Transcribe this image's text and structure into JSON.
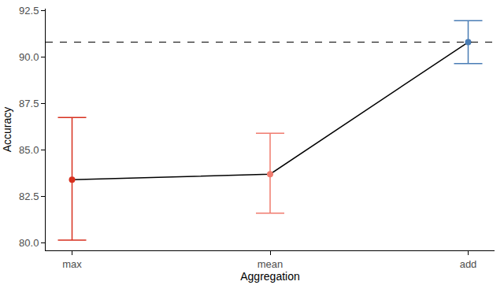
{
  "chart_data": {
    "type": "errorbar_line",
    "x_label": "Aggregation",
    "y_label": "Accuracy",
    "categories": [
      "max",
      "mean",
      "add"
    ],
    "values": [
      83.4,
      83.7,
      90.8
    ],
    "errors_plus": [
      3.35,
      2.2,
      1.15
    ],
    "errors_minus": [
      3.25,
      2.1,
      1.15
    ],
    "colors": [
      "#d7301f",
      "#f07b6e",
      "#4a7db5"
    ],
    "color": "#000000",
    "reference_line": 90.8,
    "line_style": "dashed",
    "ylim": [
      79.6,
      92.6
    ],
    "yticks": [
      {
        "value": 80,
        "label": "80.0"
      },
      82.5,
      {
        "value": 85,
        "label": "85.0"
      },
      87.5,
      {
        "value": 90,
        "label": "90.0"
      },
      92.5
    ],
    "grid": false
  }
}
